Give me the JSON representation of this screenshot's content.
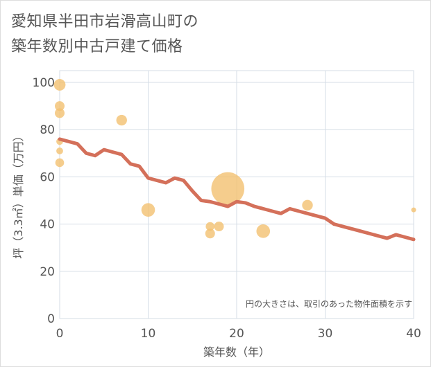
{
  "chart_data": {
    "type": "scatter",
    "title_line1": "愛知県半田市岩滑高山町の",
    "title_line2": "築年数別中古戸建て価格",
    "xlabel": "築年数（年）",
    "ylabel": "坪（3.3㎡）単価（万円）",
    "xlim": [
      0,
      40
    ],
    "ylim": [
      0,
      105
    ],
    "x_ticks": [
      "0",
      "10",
      "20",
      "30",
      "40"
    ],
    "y_ticks": [
      "0",
      "20",
      "40",
      "60",
      "80",
      "100"
    ],
    "x_tick_values": [
      0,
      10,
      20,
      30,
      40
    ],
    "y_tick_values": [
      0,
      20,
      40,
      60,
      80,
      100
    ],
    "note": "円の大きさは、取引のあった物件面積を示す",
    "colors": {
      "bubble": "#f3c070",
      "line": "#d4705a",
      "grid": "#d5dde6",
      "text": "#555555"
    },
    "scatter": [
      {
        "x": 0,
        "y": 99,
        "size": 1.2
      },
      {
        "x": 0,
        "y": 90,
        "size": 1.0
      },
      {
        "x": 0,
        "y": 87,
        "size": 1.0
      },
      {
        "x": 0,
        "y": 75,
        "size": 0.7
      },
      {
        "x": 0,
        "y": 71,
        "size": 0.7
      },
      {
        "x": 0,
        "y": 66,
        "size": 0.9
      },
      {
        "x": 7,
        "y": 84,
        "size": 1.1
      },
      {
        "x": 10,
        "y": 46,
        "size": 1.4
      },
      {
        "x": 17,
        "y": 39,
        "size": 0.9
      },
      {
        "x": 17,
        "y": 36,
        "size": 1.0
      },
      {
        "x": 18,
        "y": 39,
        "size": 1.0
      },
      {
        "x": 19,
        "y": 55,
        "size": 3.4
      },
      {
        "x": 23,
        "y": 37,
        "size": 1.4
      },
      {
        "x": 28,
        "y": 48,
        "size": 1.1
      },
      {
        "x": 40,
        "y": 46,
        "size": 0.5
      }
    ],
    "trend": {
      "x": [
        0,
        1,
        2,
        3,
        4,
        5,
        6,
        7,
        8,
        9,
        10,
        11,
        12,
        13,
        14,
        15,
        16,
        17,
        18,
        19,
        20,
        21,
        22,
        23,
        24,
        25,
        26,
        27,
        28,
        29,
        30,
        31,
        32,
        33,
        34,
        35,
        36,
        37,
        38,
        39,
        40
      ],
      "y": [
        76,
        75,
        74,
        70,
        69,
        71.5,
        70.5,
        69.5,
        65.5,
        64.5,
        59.5,
        58.5,
        57.5,
        59.5,
        58.5,
        54,
        50,
        49.5,
        48.5,
        47.5,
        49.5,
        49,
        47.5,
        46.5,
        45.5,
        44.5,
        46.5,
        45.5,
        44.5,
        43.5,
        42.5,
        40,
        39,
        38,
        37,
        36,
        35,
        34,
        35.5,
        34.5,
        33.5
      ]
    }
  }
}
